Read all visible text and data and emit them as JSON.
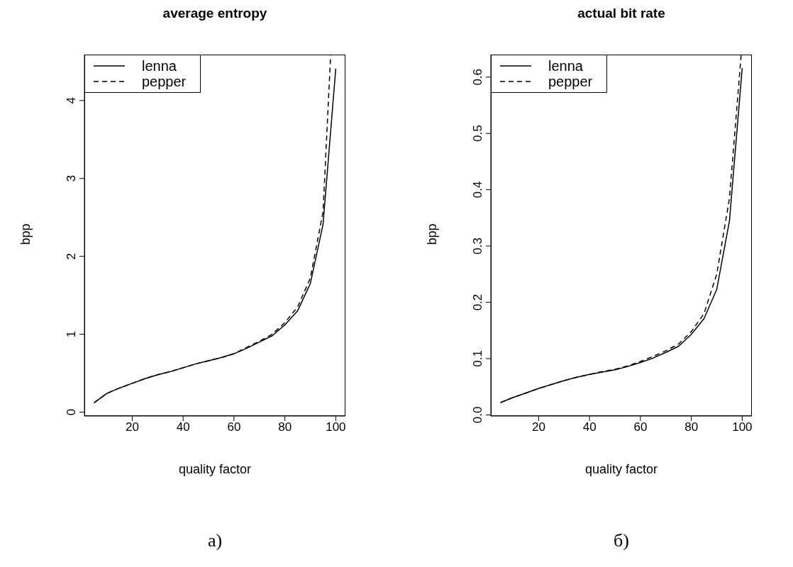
{
  "chart_data": [
    {
      "type": "line",
      "title": "average entropy",
      "xlabel": "quality factor",
      "ylabel": "bpp",
      "xlim": [
        1.2,
        103.8
      ],
      "xticks": [
        20,
        40,
        60,
        80,
        100
      ],
      "ylim": [
        -0.05,
        4.59
      ],
      "yticks": [
        0,
        1,
        2,
        3,
        4
      ],
      "grid": false,
      "legend": "top left",
      "marker": "none",
      "annotations": [
        "a)"
      ],
      "series": [
        {
          "name": "lenna",
          "color": "#000000",
          "line_style": "solid",
          "x": [
            5,
            10,
            15,
            20,
            25,
            30,
            35,
            40,
            45,
            50,
            55,
            60,
            65,
            70,
            75,
            80,
            85,
            90,
            95,
            100
          ],
          "values": [
            0.12,
            0.24,
            0.31,
            0.37,
            0.43,
            0.48,
            0.52,
            0.57,
            0.62,
            0.66,
            0.7,
            0.75,
            0.82,
            0.9,
            0.98,
            1.12,
            1.3,
            1.65,
            2.41,
            4.41
          ]
        },
        {
          "name": "pepper",
          "color": "#000000",
          "line_style": "dashed",
          "x": [
            5,
            10,
            15,
            20,
            25,
            30,
            35,
            40,
            45,
            50,
            55,
            60,
            65,
            70,
            75,
            80,
            85,
            90,
            95,
            98
          ],
          "values": [
            0.12,
            0.24,
            0.31,
            0.37,
            0.43,
            0.48,
            0.52,
            0.57,
            0.62,
            0.66,
            0.7,
            0.75,
            0.83,
            0.91,
            1.0,
            1.15,
            1.35,
            1.72,
            2.57,
            4.59
          ]
        }
      ]
    },
    {
      "type": "line",
      "title": "actual bit rate",
      "xlabel": "quality factor",
      "ylabel": "bpp",
      "xlim": [
        1.2,
        103.8
      ],
      "xticks": [
        20,
        40,
        60,
        80,
        100
      ],
      "ylim": [
        -0.002,
        0.64
      ],
      "yticks": [
        {
          "value": 0,
          "label": "0.0"
        },
        0.1,
        0.2,
        0.3,
        0.4,
        0.5,
        0.6
      ],
      "grid": false,
      "legend": "top left",
      "marker": "none",
      "annotations": [
        "б)"
      ],
      "series": [
        {
          "name": "lenna",
          "color": "#000000",
          "line_style": "solid",
          "x": [
            5,
            10,
            15,
            20,
            25,
            30,
            35,
            40,
            45,
            50,
            55,
            60,
            65,
            70,
            75,
            80,
            85,
            90,
            95,
            100
          ],
          "values": [
            0.022,
            0.031,
            0.039,
            0.047,
            0.054,
            0.061,
            0.067,
            0.072,
            0.076,
            0.08,
            0.086,
            0.093,
            0.101,
            0.111,
            0.122,
            0.143,
            0.171,
            0.223,
            0.345,
            0.616
          ]
        },
        {
          "name": "pepper",
          "color": "#000000",
          "line_style": "dashed",
          "x": [
            5,
            10,
            15,
            20,
            25,
            30,
            35,
            40,
            45,
            50,
            55,
            60,
            65,
            70,
            75,
            80,
            85,
            90,
            95,
            99.6
          ],
          "values": [
            0.022,
            0.031,
            0.039,
            0.047,
            0.054,
            0.061,
            0.067,
            0.072,
            0.077,
            0.081,
            0.087,
            0.095,
            0.104,
            0.114,
            0.126,
            0.148,
            0.18,
            0.25,
            0.385,
            0.64
          ]
        }
      ]
    }
  ]
}
